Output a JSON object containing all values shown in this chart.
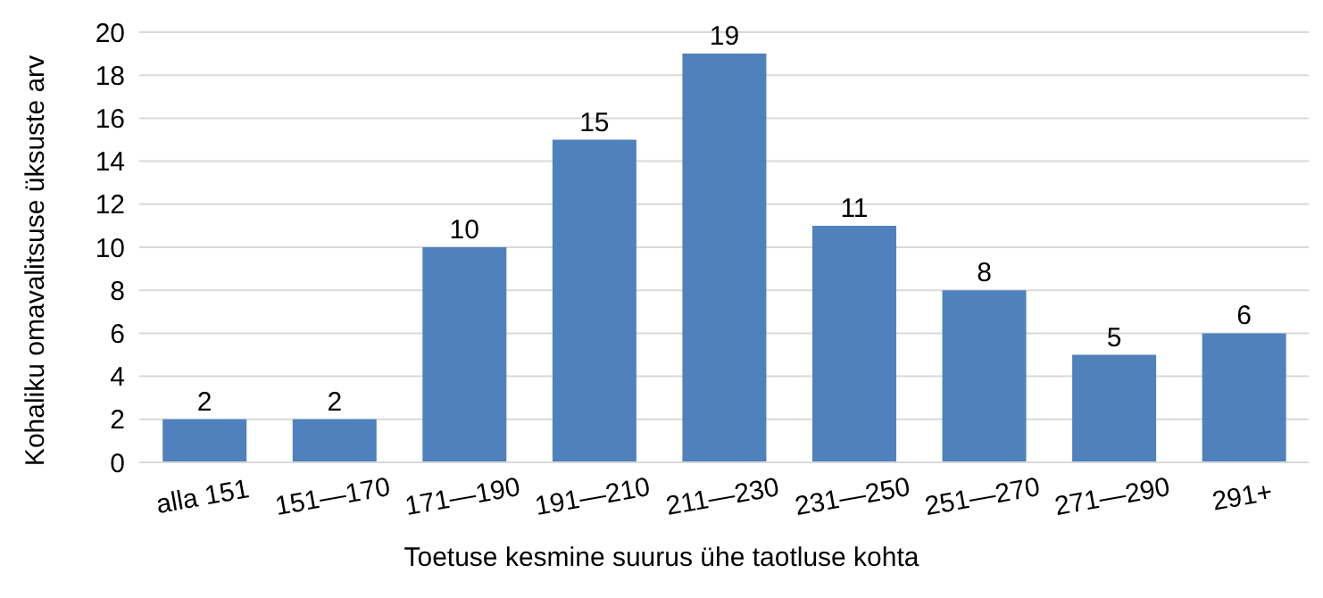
{
  "chart_data": {
    "type": "bar",
    "xlabel": "Toetuse kesmine suurus ühe taotluse kohta",
    "ylabel": "Kohaliku omavalitsuse üksuste arv",
    "categories": [
      "alla 151",
      "151—170",
      "171—190",
      "191—210",
      "211—230",
      "231—250",
      "251—270",
      "271—290",
      "291+"
    ],
    "values": [
      2,
      2,
      10,
      15,
      19,
      11,
      8,
      5,
      6
    ],
    "color": "#4f81bd",
    "ylim": [
      0,
      20
    ],
    "yticks": [
      0,
      2,
      4,
      6,
      8,
      10,
      12,
      14,
      16,
      18,
      20
    ],
    "grid": "y",
    "data_labels": true
  }
}
